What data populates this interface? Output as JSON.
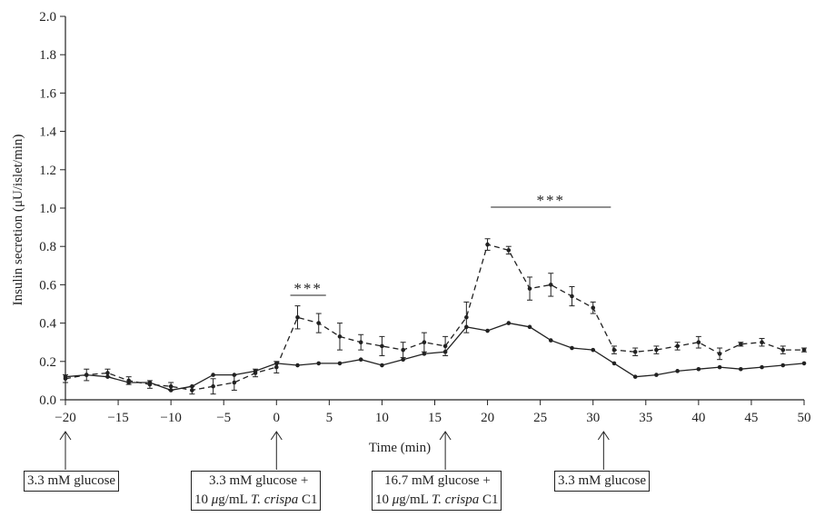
{
  "chart_data": {
    "type": "line",
    "title": "",
    "xlabel": "Time (min)",
    "ylabel": "Insulin secretion (μU/islet/min)",
    "xlim": [
      -20,
      50
    ],
    "ylim": [
      0.0,
      2.0
    ],
    "x_ticks": [
      "−20",
      "−15",
      "−10",
      "−5",
      "0",
      "5",
      "10",
      "15",
      "20",
      "25",
      "30",
      "35",
      "40",
      "45",
      "50"
    ],
    "y_ticks": [
      "0.0",
      "0.2",
      "0.4",
      "0.6",
      "0.8",
      "1.0",
      "1.2",
      "1.4",
      "1.6",
      "1.8",
      "2.0"
    ],
    "x": [
      -20,
      -18,
      -16,
      -14,
      -12,
      -10,
      -8,
      -6,
      -4,
      -2,
      0,
      2,
      4,
      6,
      8,
      10,
      12,
      14,
      16,
      18,
      20,
      22,
      24,
      26,
      28,
      30,
      32,
      34,
      36,
      38,
      40,
      42,
      44,
      46,
      48,
      50
    ],
    "series": [
      {
        "style": "solid",
        "values": [
          0.12,
          0.13,
          0.12,
          0.09,
          0.09,
          0.05,
          0.07,
          0.13,
          0.13,
          0.15,
          0.19,
          0.18,
          0.19,
          0.19,
          0.21,
          0.18,
          0.21,
          0.24,
          0.25,
          0.38,
          0.36,
          0.4,
          0.38,
          0.31,
          0.27,
          0.26,
          0.19,
          0.12,
          0.13,
          0.15,
          0.16,
          0.17,
          0.16,
          0.17,
          0.18,
          0.19
        ]
      },
      {
        "style": "dashed",
        "values": [
          0.11,
          0.13,
          0.14,
          0.1,
          0.08,
          0.07,
          0.05,
          0.07,
          0.09,
          0.14,
          0.17,
          0.43,
          0.4,
          0.33,
          0.3,
          0.28,
          0.26,
          0.3,
          0.28,
          0.43,
          0.81,
          0.78,
          0.58,
          0.6,
          0.54,
          0.48,
          0.26,
          0.25,
          0.26,
          0.28,
          0.3,
          0.24,
          0.29,
          0.3,
          0.26,
          0.26
        ],
        "errors": [
          0.02,
          0.03,
          0.02,
          0.02,
          0.02,
          0.02,
          0.02,
          0.04,
          0.04,
          0.02,
          0.03,
          0.06,
          0.05,
          0.07,
          0.04,
          0.05,
          0.04,
          0.05,
          0.05,
          0.08,
          0.03,
          0.02,
          0.06,
          0.06,
          0.05,
          0.03,
          0.02,
          0.02,
          0.02,
          0.02,
          0.03,
          0.03,
          0.01,
          0.02,
          0.02,
          0.01
        ]
      }
    ],
    "significance": [
      {
        "label": "***",
        "x_start": 2,
        "x_end": 4
      },
      {
        "label": "***",
        "x_start": 21,
        "x_end": 31
      }
    ],
    "arrows": [
      {
        "x": -20,
        "label_lines": [
          "3.3 mM glucose"
        ]
      },
      {
        "x": 0,
        "label_lines": [
          "3.3 mM glucose +",
          "10 μg/mL T. crispa C1"
        ]
      },
      {
        "x": 16,
        "label_lines": [
          "16.7 mM glucose +",
          "10 μg/mL T. crispa C1"
        ]
      },
      {
        "x": 31,
        "label_lines": [
          "3.3 mM glucose"
        ]
      }
    ]
  }
}
